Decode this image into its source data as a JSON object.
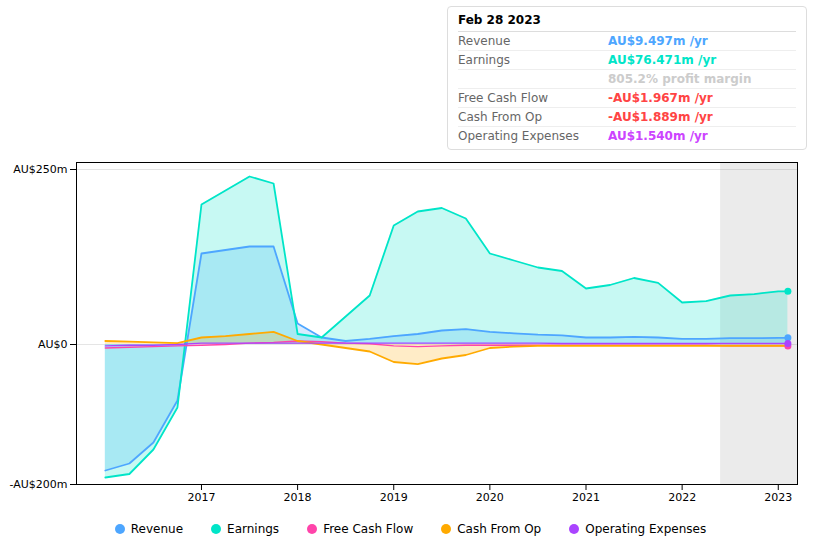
{
  "chart_data": {
    "type": "line",
    "annotations": [
      {
        "text": "Feb 28 2023"
      },
      {
        "label": "Revenue",
        "text": "AU$9.497m /yr",
        "color": "#4da6ff"
      },
      {
        "label": "Earnings",
        "text": "AU$76.471m /yr",
        "color": "#00e5c8"
      },
      {
        "text": "805.2% profit margin",
        "color": "#cccccc"
      },
      {
        "label": "Free Cash Flow",
        "text": "-AU$1.967m /yr",
        "color": "#ff4444"
      },
      {
        "label": "Cash From Op",
        "text": "-AU$1.889m /yr",
        "color": "#ff4444"
      },
      {
        "label": "Operating Expenses",
        "text": "AU$1.540m /yr",
        "color": "#cc44ff"
      }
    ],
    "x": [
      2016.0,
      2016.25,
      2016.5,
      2016.75,
      2017.0,
      2017.25,
      2017.5,
      2017.75,
      2018.0,
      2018.25,
      2018.5,
      2018.75,
      2019.0,
      2019.25,
      2019.5,
      2019.75,
      2020.0,
      2020.25,
      2020.5,
      2020.75,
      2021.0,
      2021.25,
      2021.5,
      2021.75,
      2022.0,
      2022.25,
      2022.5,
      2022.75,
      2023.0,
      2023.1
    ],
    "series": [
      {
        "name": "Revenue",
        "color": "#4da6ff",
        "type": "area",
        "marker": "circle",
        "values": [
          -180,
          -170,
          -140,
          -80,
          130,
          135,
          140,
          140,
          30,
          10,
          5,
          8,
          12,
          15,
          20,
          22,
          18,
          16,
          14,
          13,
          10,
          10,
          11,
          10,
          8,
          8,
          9,
          9,
          9.5,
          9.5
        ]
      },
      {
        "name": "Earnings",
        "color": "#00e5c8",
        "type": "area",
        "marker": "circle",
        "values": [
          -190,
          -185,
          -150,
          -90,
          200,
          220,
          240,
          230,
          15,
          10,
          40,
          70,
          170,
          190,
          195,
          180,
          130,
          120,
          110,
          105,
          80,
          85,
          95,
          88,
          60,
          62,
          70,
          72,
          76,
          76
        ]
      },
      {
        "name": "Free Cash Flow",
        "color": "#ff44aa",
        "type": "line",
        "marker": "circle",
        "values": [
          -5,
          -4,
          -3,
          -2,
          -1,
          0,
          2,
          3,
          5,
          4,
          2,
          1,
          -2,
          -3,
          -2,
          -1,
          -1,
          -1,
          -1,
          -1,
          -1,
          -1,
          -1,
          -1,
          -1,
          -1,
          -2,
          -2,
          -2,
          -2
        ]
      },
      {
        "name": "Cash From Op",
        "color": "#ffaa00",
        "type": "area",
        "values": [
          5,
          4,
          3,
          2,
          10,
          12,
          15,
          18,
          5,
          0,
          -5,
          -10,
          -25,
          -28,
          -20,
          -15,
          -5,
          -3,
          -2,
          -2,
          -2,
          -2,
          -2,
          -2,
          -2,
          -2,
          -2,
          -2,
          -2,
          -2
        ]
      },
      {
        "name": "Operating Expenses",
        "color": "#aa44ff",
        "type": "line",
        "marker": "circle",
        "values": [
          -2,
          -1,
          -1,
          0,
          2,
          2,
          2,
          2,
          2,
          2,
          2,
          2,
          2,
          2,
          2,
          2,
          2,
          2,
          2,
          1.5,
          1.5,
          1.5,
          1.5,
          1.5,
          1.5,
          1.5,
          1.5,
          1.5,
          1.5,
          1.5
        ]
      }
    ],
    "xlim": [
      2015.7,
      2023.2
    ],
    "xticks": [
      2017,
      2018,
      2019,
      2020,
      2021,
      2022,
      2023
    ],
    "ylim": [
      -200,
      260
    ],
    "yticks": [
      {
        "value": 250,
        "label": "AU$250m"
      },
      {
        "value": 0,
        "label": "AU$0"
      },
      {
        "value": -200,
        "label": "-AU$200m"
      }
    ],
    "grid": true,
    "legend": "bottom",
    "shaded_from": 2022.4
  }
}
